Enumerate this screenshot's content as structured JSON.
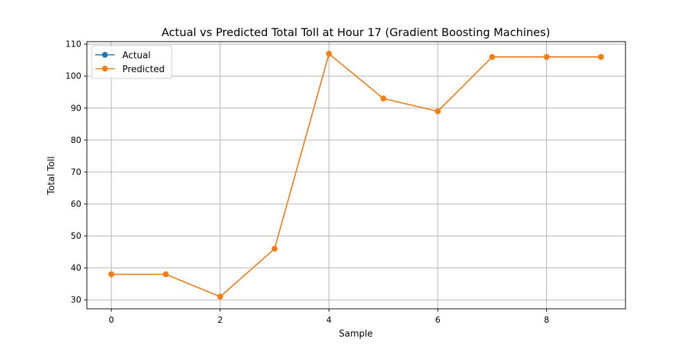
{
  "chart_data": {
    "type": "line",
    "title": "Actual vs Predicted Total Toll at Hour 17 (Gradient Boosting Machines)",
    "xlabel": "Sample",
    "ylabel": "Total Toll",
    "x": [
      0,
      1,
      2,
      3,
      4,
      5,
      6,
      7,
      8,
      9
    ],
    "xlim": [
      -0.45,
      9.45
    ],
    "ylim": [
      27.2,
      110.8
    ],
    "xticks": [
      0,
      2,
      4,
      6,
      8
    ],
    "yticks": [
      30,
      40,
      50,
      60,
      70,
      80,
      90,
      100,
      110
    ],
    "grid": true,
    "legend_position": "top-left",
    "series": [
      {
        "name": "Actual",
        "color": "#1f77b4",
        "marker": "circle",
        "values": [
          38,
          38,
          31,
          46,
          107,
          93,
          89,
          106,
          106,
          106
        ]
      },
      {
        "name": "Predicted",
        "color": "#ff7f0e",
        "marker": "circle",
        "values": [
          38,
          38,
          31,
          46,
          107,
          93,
          89,
          106,
          106,
          106
        ]
      }
    ]
  }
}
